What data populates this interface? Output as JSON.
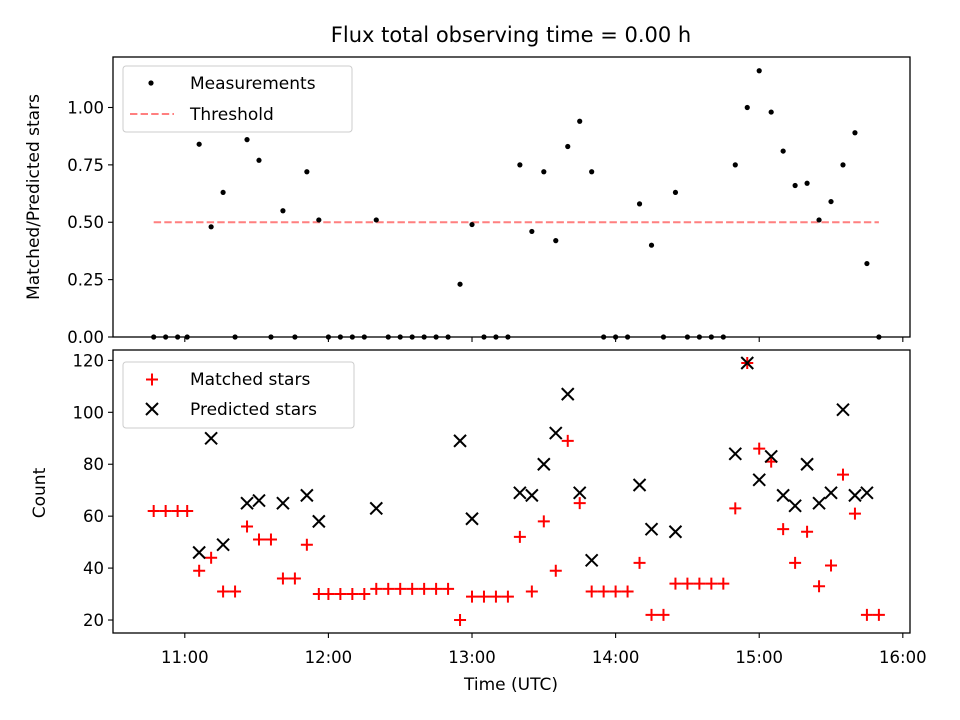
{
  "figure": {
    "title": "Flux total observing time = 0.00 h"
  },
  "chart_data": [
    {
      "type": "scatter",
      "title": "Flux total observing time = 0.00 h",
      "xlabel": "",
      "ylabel": "Matched/Predicted stars",
      "xlim": [
        "10:30",
        "16:03"
      ],
      "ylim": [
        0,
        1.22
      ],
      "yticks": [
        "0.00",
        "0.25",
        "0.50",
        "0.75",
        "1.00"
      ],
      "grid": false,
      "legend_position": "top-left",
      "series": [
        {
          "name": "Measurements",
          "marker": "dot",
          "color": "#000000",
          "points": [
            [
              "10:47",
              0.0
            ],
            [
              "10:52",
              0.0
            ],
            [
              "10:57",
              0.0
            ],
            [
              "11:01",
              0.0
            ],
            [
              "11:06",
              0.84
            ],
            [
              "11:11",
              0.48
            ],
            [
              "11:16",
              0.63
            ],
            [
              "11:21",
              0.0
            ],
            [
              "11:26",
              0.86
            ],
            [
              "11:31",
              0.77
            ],
            [
              "11:36",
              0.0
            ],
            [
              "11:41",
              0.55
            ],
            [
              "11:46",
              0.0
            ],
            [
              "11:51",
              0.72
            ],
            [
              "11:56",
              0.51
            ],
            [
              "12:00",
              0.0
            ],
            [
              "12:05",
              0.0
            ],
            [
              "12:10",
              0.0
            ],
            [
              "12:15",
              0.0
            ],
            [
              "12:20",
              0.51
            ],
            [
              "12:25",
              0.0
            ],
            [
              "12:30",
              0.0
            ],
            [
              "12:35",
              0.0
            ],
            [
              "12:40",
              0.0
            ],
            [
              "12:45",
              0.0
            ],
            [
              "12:50",
              0.0
            ],
            [
              "12:55",
              0.23
            ],
            [
              "13:00",
              0.49
            ],
            [
              "13:05",
              0.0
            ],
            [
              "13:10",
              0.0
            ],
            [
              "13:15",
              0.0
            ],
            [
              "13:20",
              0.75
            ],
            [
              "13:25",
              0.46
            ],
            [
              "13:30",
              0.72
            ],
            [
              "13:35",
              0.42
            ],
            [
              "13:40",
              0.83
            ],
            [
              "13:45",
              0.94
            ],
            [
              "13:50",
              0.72
            ],
            [
              "13:55",
              0.0
            ],
            [
              "14:00",
              0.0
            ],
            [
              "14:05",
              0.0
            ],
            [
              "14:10",
              0.58
            ],
            [
              "14:15",
              0.4
            ],
            [
              "14:20",
              0.0
            ],
            [
              "14:25",
              0.63
            ],
            [
              "14:30",
              0.0
            ],
            [
              "14:35",
              0.0
            ],
            [
              "14:40",
              0.0
            ],
            [
              "14:45",
              0.0
            ],
            [
              "14:50",
              0.75
            ],
            [
              "14:55",
              1.0
            ],
            [
              "15:00",
              1.16
            ],
            [
              "15:05",
              0.98
            ],
            [
              "15:10",
              0.81
            ],
            [
              "15:15",
              0.66
            ],
            [
              "15:20",
              0.67
            ],
            [
              "15:25",
              0.51
            ],
            [
              "15:30",
              0.59
            ],
            [
              "15:35",
              0.75
            ],
            [
              "15:40",
              0.89
            ],
            [
              "15:45",
              0.32
            ],
            [
              "15:50",
              0.0
            ]
          ]
        },
        {
          "name": "Threshold",
          "style": "dashed-line",
          "color": "#ff7f7f",
          "points": [
            [
              "10:47",
              0.5
            ],
            [
              "15:50",
              0.5
            ]
          ]
        }
      ]
    },
    {
      "type": "scatter",
      "title": "",
      "xlabel": "Time (UTC)",
      "ylabel": "Count",
      "xlim": [
        "10:30",
        "16:03"
      ],
      "ylim": [
        15,
        124
      ],
      "yticks": [
        "20",
        "40",
        "60",
        "80",
        "100",
        "120"
      ],
      "xticks": [
        "11:00",
        "12:00",
        "13:00",
        "14:00",
        "15:00",
        "16:00"
      ],
      "grid": false,
      "legend_position": "top-left",
      "series": [
        {
          "name": "Matched stars",
          "marker": "plus",
          "color": "#ff0000",
          "points": [
            [
              "10:47",
              62
            ],
            [
              "10:52",
              62
            ],
            [
              "10:57",
              62
            ],
            [
              "11:01",
              62
            ],
            [
              "11:06",
              39
            ],
            [
              "11:11",
              44
            ],
            [
              "11:16",
              31
            ],
            [
              "11:21",
              31
            ],
            [
              "11:26",
              56
            ],
            [
              "11:31",
              51
            ],
            [
              "11:36",
              51
            ],
            [
              "11:41",
              36
            ],
            [
              "11:46",
              36
            ],
            [
              "11:51",
              49
            ],
            [
              "11:56",
              30
            ],
            [
              "12:00",
              30
            ],
            [
              "12:05",
              30
            ],
            [
              "12:10",
              30
            ],
            [
              "12:15",
              30
            ],
            [
              "12:20",
              32
            ],
            [
              "12:25",
              32
            ],
            [
              "12:30",
              32
            ],
            [
              "12:35",
              32
            ],
            [
              "12:40",
              32
            ],
            [
              "12:45",
              32
            ],
            [
              "12:50",
              32
            ],
            [
              "12:55",
              20
            ],
            [
              "13:00",
              29
            ],
            [
              "13:05",
              29
            ],
            [
              "13:10",
              29
            ],
            [
              "13:15",
              29
            ],
            [
              "13:20",
              52
            ],
            [
              "13:25",
              31
            ],
            [
              "13:30",
              58
            ],
            [
              "13:35",
              39
            ],
            [
              "13:40",
              89
            ],
            [
              "13:45",
              65
            ],
            [
              "13:50",
              31
            ],
            [
              "13:55",
              31
            ],
            [
              "14:00",
              31
            ],
            [
              "14:05",
              31
            ],
            [
              "14:10",
              42
            ],
            [
              "14:15",
              22
            ],
            [
              "14:20",
              22
            ],
            [
              "14:25",
              34
            ],
            [
              "14:30",
              34
            ],
            [
              "14:35",
              34
            ],
            [
              "14:40",
              34
            ],
            [
              "14:45",
              34
            ],
            [
              "14:50",
              63
            ],
            [
              "14:55",
              119
            ],
            [
              "15:00",
              86
            ],
            [
              "15:05",
              81
            ],
            [
              "15:10",
              55
            ],
            [
              "15:15",
              42
            ],
            [
              "15:20",
              54
            ],
            [
              "15:25",
              33
            ],
            [
              "15:30",
              41
            ],
            [
              "15:35",
              76
            ],
            [
              "15:40",
              61
            ],
            [
              "15:45",
              22
            ],
            [
              "15:50",
              22
            ]
          ]
        },
        {
          "name": "Predicted stars",
          "marker": "x",
          "color": "#000000",
          "points": [
            [
              "11:06",
              46
            ],
            [
              "11:11",
              90
            ],
            [
              "11:16",
              49
            ],
            [
              "11:26",
              65
            ],
            [
              "11:31",
              66
            ],
            [
              "11:41",
              65
            ],
            [
              "11:51",
              68
            ],
            [
              "11:56",
              58
            ],
            [
              "12:20",
              63
            ],
            [
              "12:55",
              89
            ],
            [
              "13:00",
              59
            ],
            [
              "13:20",
              69
            ],
            [
              "13:25",
              68
            ],
            [
              "13:30",
              80
            ],
            [
              "13:35",
              92
            ],
            [
              "13:40",
              107
            ],
            [
              "13:45",
              69
            ],
            [
              "13:50",
              43
            ],
            [
              "14:10",
              72
            ],
            [
              "14:15",
              55
            ],
            [
              "14:25",
              54
            ],
            [
              "14:50",
              84
            ],
            [
              "14:55",
              119
            ],
            [
              "15:00",
              74
            ],
            [
              "15:05",
              83
            ],
            [
              "15:10",
              68
            ],
            [
              "15:15",
              64
            ],
            [
              "15:20",
              80
            ],
            [
              "15:25",
              65
            ],
            [
              "15:30",
              69
            ],
            [
              "15:35",
              101
            ],
            [
              "15:40",
              68
            ],
            [
              "15:45",
              69
            ]
          ]
        }
      ]
    }
  ]
}
